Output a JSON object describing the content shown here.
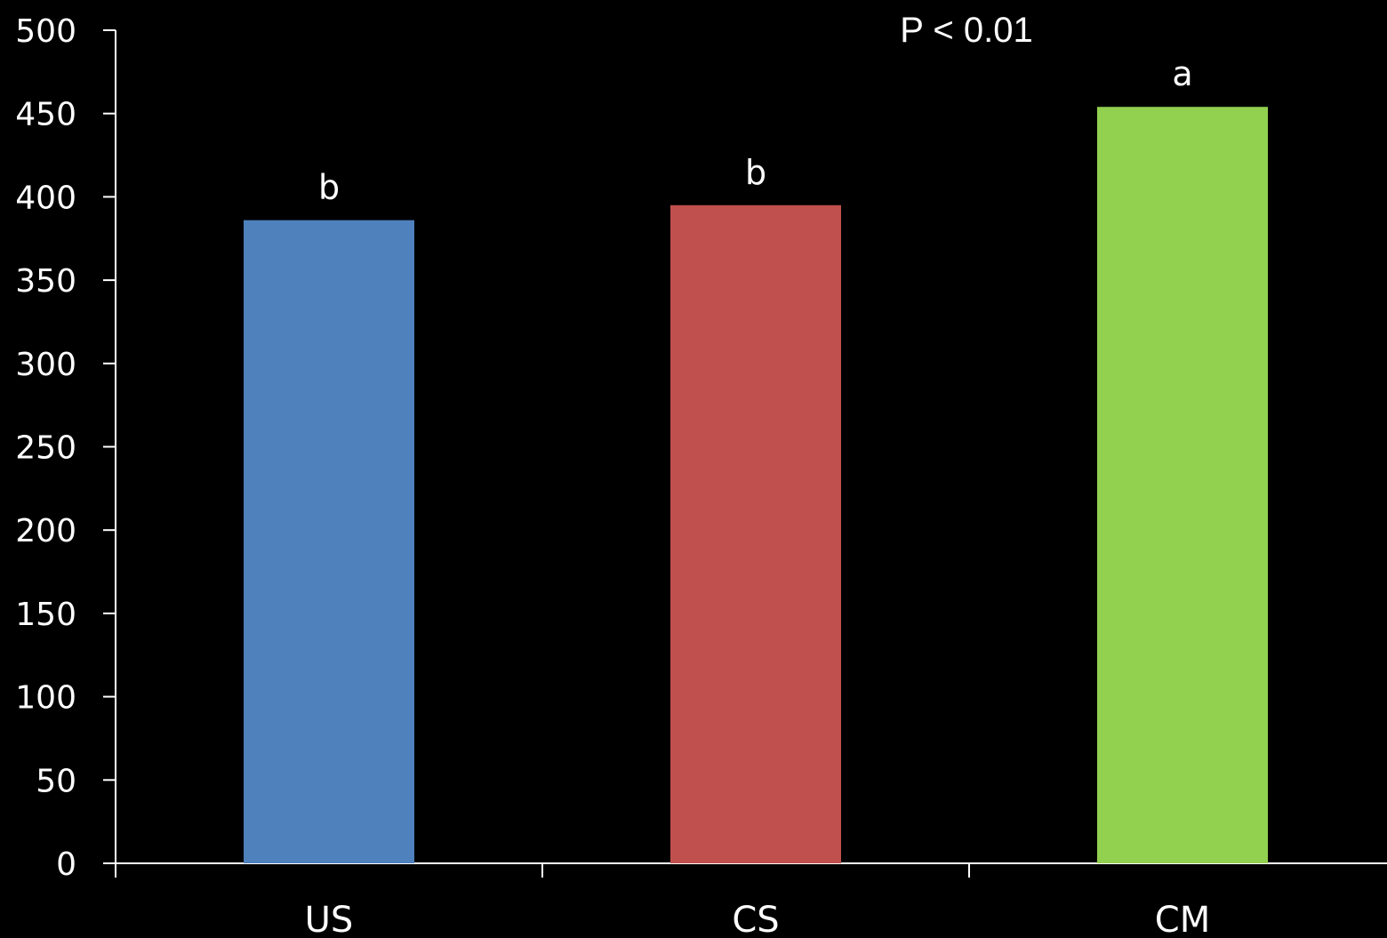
{
  "chart_data": {
    "type": "bar",
    "title": "",
    "xlabel": "",
    "ylabel": "",
    "categories": [
      "US",
      "CS",
      "CM"
    ],
    "values": [
      386,
      395,
      454
    ],
    "data_labels": [
      "b",
      "b",
      "a"
    ],
    "annotation": "P < 0.01",
    "ylim": [
      0,
      500
    ],
    "yticks": [
      0,
      50,
      100,
      150,
      200,
      250,
      300,
      350,
      400,
      450,
      500
    ],
    "grid": false,
    "background": "#000000",
    "colors": [
      "#4f81bd",
      "#c0504d",
      "#92d050"
    ],
    "axis_color": "#ffffff",
    "text_color": "#ffffff"
  }
}
